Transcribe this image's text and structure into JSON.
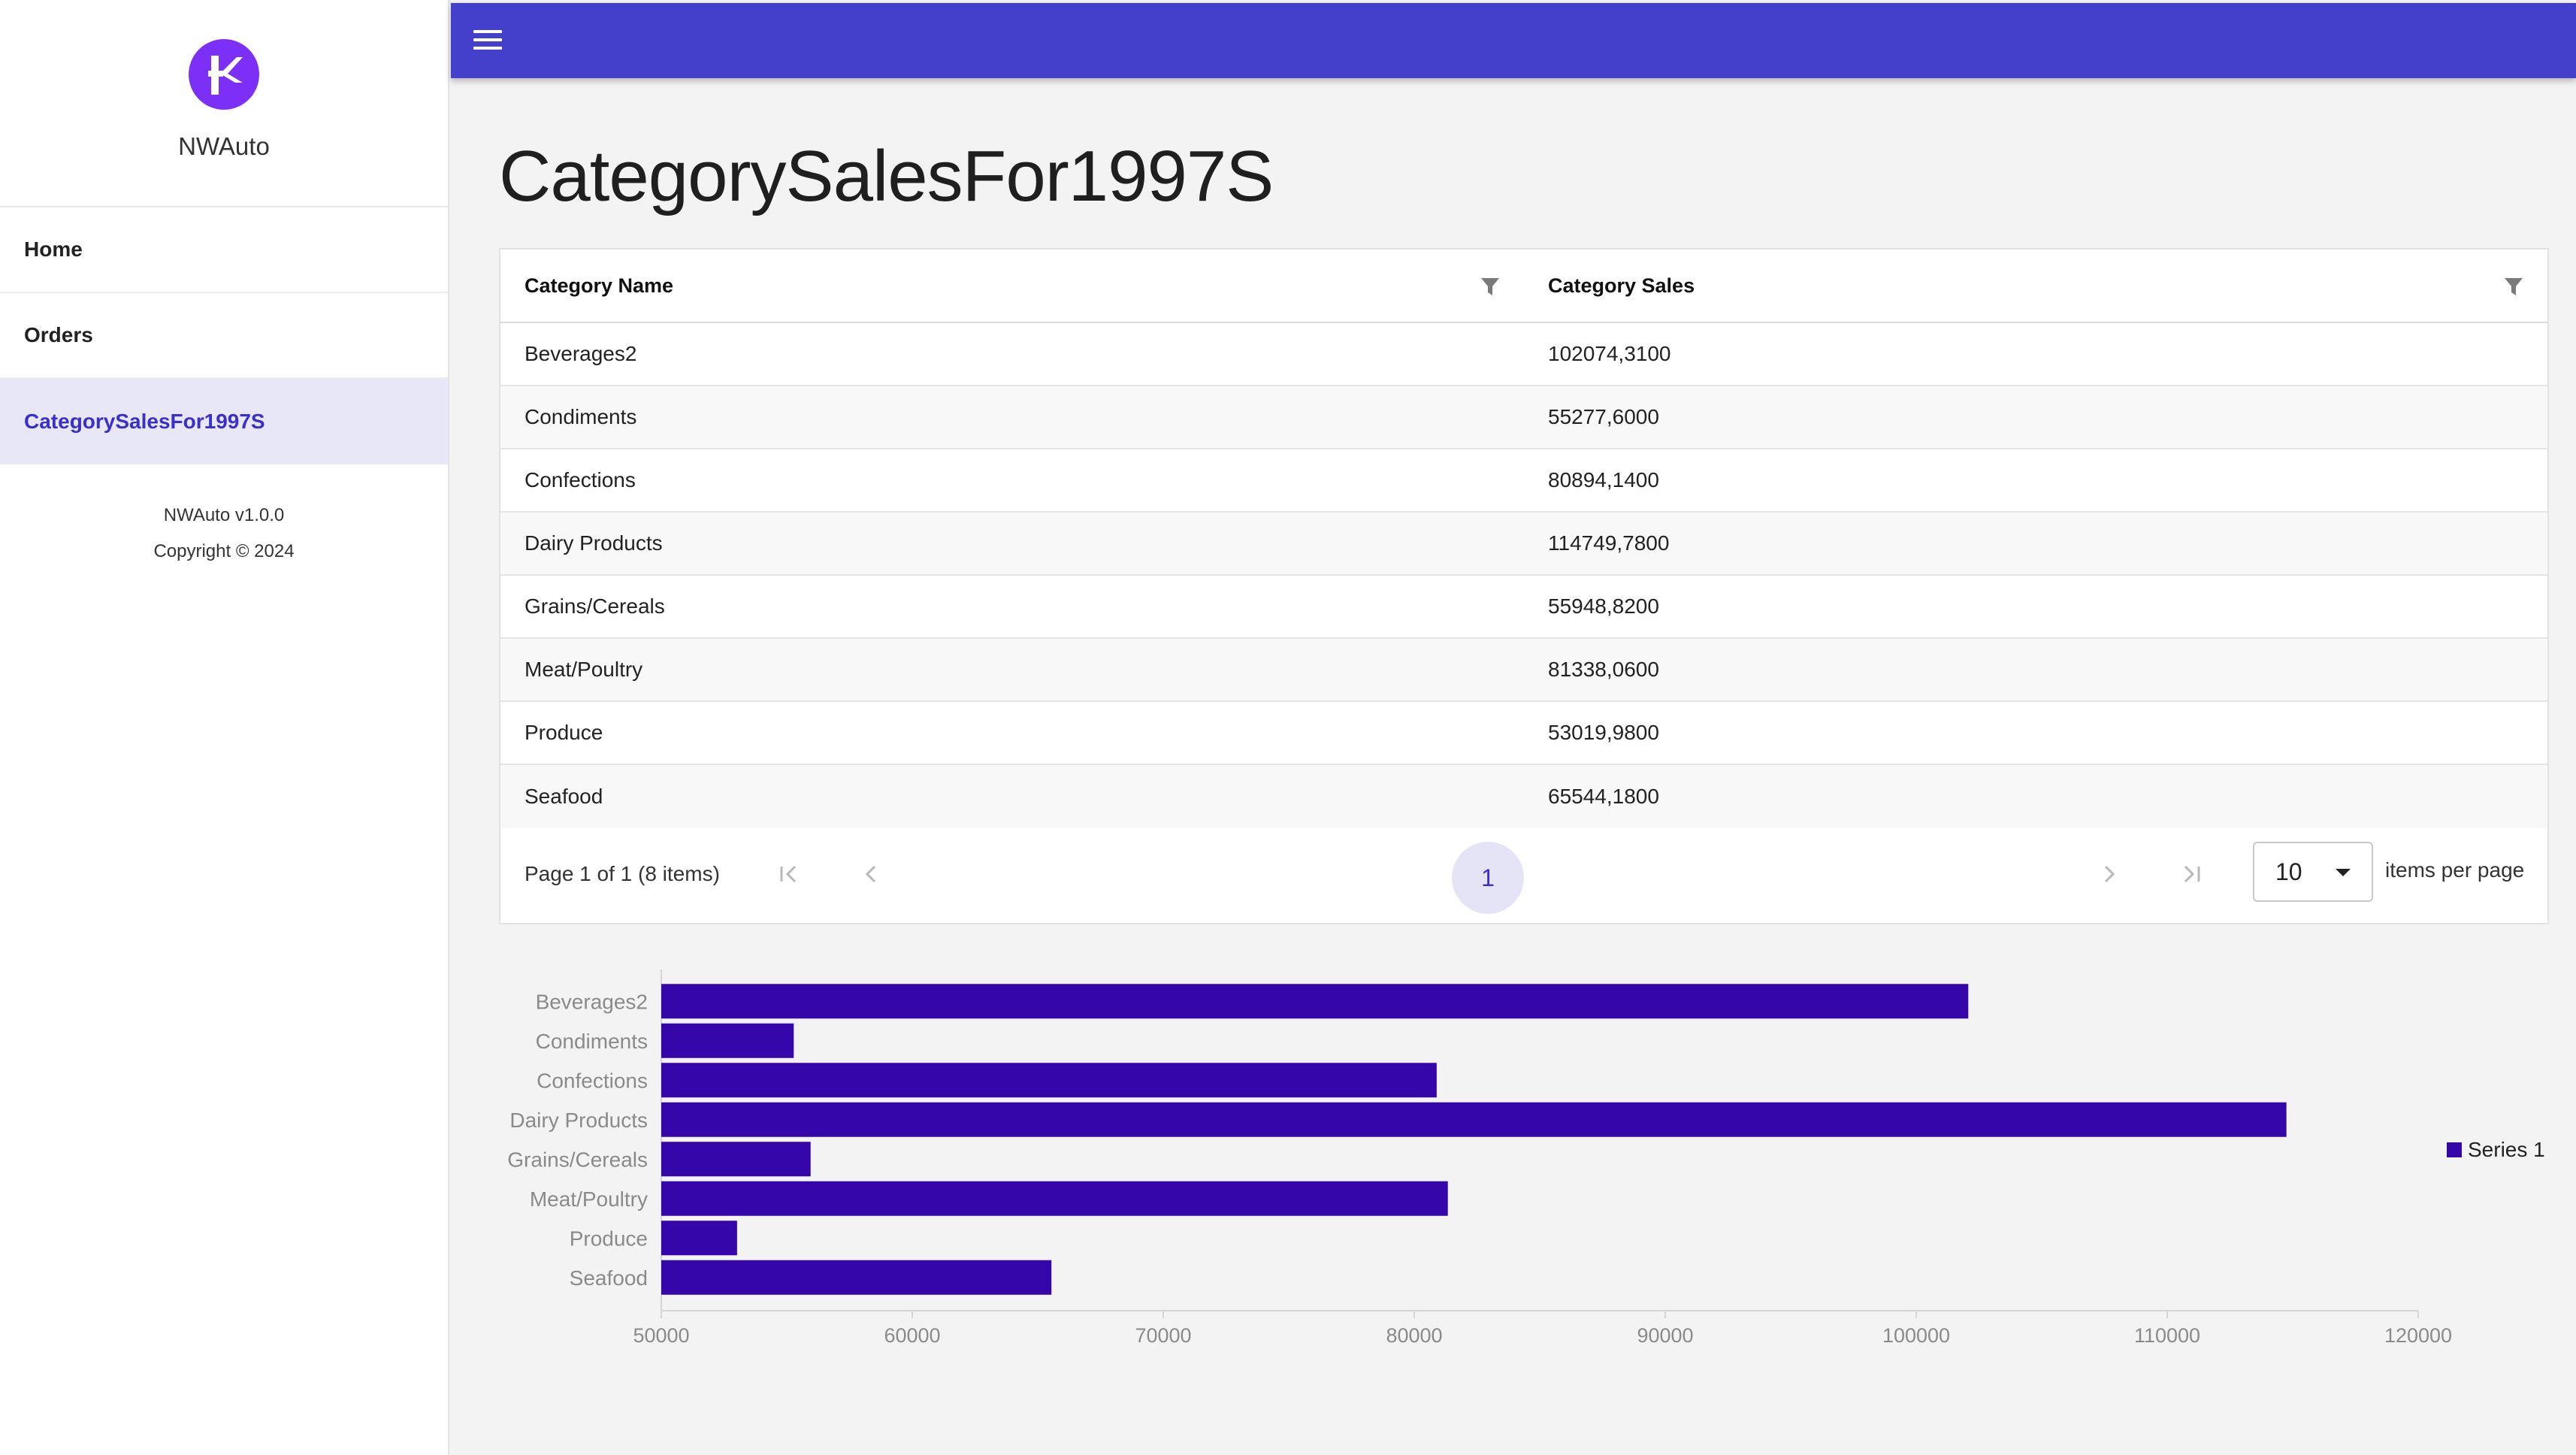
{
  "app": {
    "name": "NWAuto",
    "version": "NWAuto v1.0.0",
    "copyright": "Copyright © 2024"
  },
  "nav": {
    "items": [
      {
        "label": "Home"
      },
      {
        "label": "Orders"
      },
      {
        "label": "CategorySalesFor1997S",
        "active": true
      }
    ]
  },
  "colors": {
    "brand": "#4440cc",
    "accent": "#3b2fc9",
    "bar": "#3507aa",
    "logo": "#7b2ff7"
  },
  "page": {
    "title": "CategorySalesFor1997S"
  },
  "grid": {
    "columns": [
      "Category Name",
      "Category Sales"
    ],
    "rows": [
      [
        "Beverages2",
        "102074,3100"
      ],
      [
        "Condiments",
        "55277,6000"
      ],
      [
        "Confections",
        "80894,1400"
      ],
      [
        "Dairy Products",
        "114749,7800"
      ],
      [
        "Grains/Cereals",
        "55948,8200"
      ],
      [
        "Meat/Poultry",
        "81338,0600"
      ],
      [
        "Produce",
        "53019,9800"
      ],
      [
        "Seafood",
        "65544,1800"
      ]
    ],
    "pager": {
      "summary": "Page 1 of 1 (8 items)",
      "current_page": "1",
      "page_size": "10",
      "page_size_label": "items per page"
    }
  },
  "chart_data": {
    "type": "bar",
    "orientation": "horizontal",
    "categories": [
      "Beverages2",
      "Condiments",
      "Confections",
      "Dairy Products",
      "Grains/Cereals",
      "Meat/Poultry",
      "Produce",
      "Seafood"
    ],
    "series": [
      {
        "name": "Series 1",
        "values": [
          102074.31,
          55277.6,
          80894.14,
          114749.78,
          55948.82,
          81338.06,
          53019.98,
          65544.18
        ]
      }
    ],
    "xlim": [
      50000,
      120000
    ],
    "xticks": [
      "50000",
      "60000",
      "70000",
      "80000",
      "90000",
      "100000",
      "110000",
      "120000"
    ],
    "legend_position": "right",
    "grid": false
  }
}
